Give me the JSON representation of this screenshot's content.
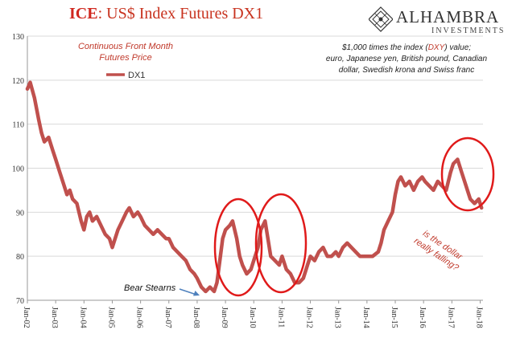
{
  "header": {
    "title_prefix": "ICE",
    "title_rest": ": US$ Index Futures DX1",
    "logo_name": "ALHAMBRA",
    "logo_sub": "INVESTMENTS"
  },
  "annotations": {
    "series_desc_line1": "Continuous  Front Month",
    "series_desc_line2": "Futures Price",
    "note_line1_a": "$1,000 times the index (",
    "note_line1_b": "DXY",
    "note_line1_c": ") value;",
    "note_line2": "euro, Japanese yen, British pound, Canadian",
    "note_line3": "dollar, Swedish krona and Swiss franc",
    "bear_stearns": "Bear Stearns",
    "question_line1": "is the dollar",
    "question_line2": "really falling?"
  },
  "colors": {
    "series": "#c0504d",
    "title_red": "#d0281f",
    "circle": "#e01a1a",
    "arrow": "#4f81bd",
    "annotation_red": "#c0392b"
  },
  "chart_data": {
    "type": "line",
    "title": "ICE: US$ Index Futures DX1",
    "ylim": [
      70,
      130
    ],
    "yticks": [
      70,
      80,
      90,
      100,
      110,
      120,
      130
    ],
    "xlim": [
      2002.0,
      2018.1
    ],
    "xtick_labels": [
      "Jan-02",
      "Jan-03",
      "Jan-04",
      "Jan-05",
      "Jan-06",
      "Jan-07",
      "Jan-08",
      "Jan-09",
      "Jan-10",
      "Jan-11",
      "Jan-12",
      "Jan-13",
      "Jan-14",
      "Jan-15",
      "Jan-16",
      "Jan-17",
      "Jan-18"
    ],
    "grid": "horizontal",
    "legend_position": "top-left",
    "series": [
      {
        "name": "DX1",
        "x": [
          2002.0,
          2002.1,
          2002.25,
          2002.4,
          2002.5,
          2002.6,
          2002.75,
          2002.9,
          2003.0,
          2003.15,
          2003.3,
          2003.4,
          2003.5,
          2003.6,
          2003.75,
          2003.9,
          2004.0,
          2004.1,
          2004.2,
          2004.3,
          2004.45,
          2004.6,
          2004.75,
          2004.9,
          2005.0,
          2005.1,
          2005.2,
          2005.35,
          2005.5,
          2005.6,
          2005.75,
          2005.9,
          2006.0,
          2006.15,
          2006.3,
          2006.45,
          2006.6,
          2006.75,
          2006.9,
          2007.0,
          2007.15,
          2007.3,
          2007.45,
          2007.6,
          2007.75,
          2007.9,
          2008.0,
          2008.15,
          2008.3,
          2008.45,
          2008.6,
          2008.7,
          2008.8,
          2008.9,
          2009.0,
          2009.15,
          2009.25,
          2009.4,
          2009.5,
          2009.6,
          2009.75,
          2009.9,
          2010.0,
          2010.15,
          2010.25,
          2010.4,
          2010.5,
          2010.6,
          2010.75,
          2010.9,
          2011.0,
          2011.15,
          2011.3,
          2011.45,
          2011.6,
          2011.75,
          2011.9,
          2012.0,
          2012.15,
          2012.3,
          2012.45,
          2012.6,
          2012.75,
          2012.9,
          2013.0,
          2013.15,
          2013.3,
          2013.45,
          2013.6,
          2013.75,
          2013.9,
          2014.0,
          2014.2,
          2014.4,
          2014.5,
          2014.6,
          2014.75,
          2014.9,
          2015.0,
          2015.1,
          2015.2,
          2015.35,
          2015.5,
          2015.65,
          2015.8,
          2015.95,
          2016.05,
          2016.2,
          2016.35,
          2016.5,
          2016.65,
          2016.8,
          2016.95,
          2017.05,
          2017.2,
          2017.35,
          2017.5,
          2017.65,
          2017.8,
          2017.95,
          2018.05
        ],
        "values": [
          118,
          119.5,
          116,
          111,
          108,
          106,
          107,
          104,
          102,
          99,
          96,
          94,
          95,
          93,
          92,
          88,
          86,
          89,
          90,
          88,
          89,
          87,
          85,
          84,
          82,
          84,
          86,
          88,
          90,
          91,
          89,
          90,
          89,
          87,
          86,
          85,
          86,
          85,
          84,
          84,
          82,
          81,
          80,
          79,
          77,
          76,
          75,
          73,
          72,
          73,
          72,
          74,
          79,
          84,
          86,
          87,
          88,
          84,
          80,
          78,
          76,
          77,
          79,
          82,
          86,
          88,
          84,
          80,
          79,
          78,
          80,
          77,
          76,
          74,
          74,
          75,
          78,
          80,
          79,
          81,
          82,
          80,
          80,
          81,
          80,
          82,
          83,
          82,
          81,
          80,
          80,
          80,
          80,
          81,
          83,
          86,
          88,
          90,
          94,
          97,
          98,
          96,
          97,
          95,
          97,
          98,
          97,
          96,
          95,
          97,
          96,
          95,
          99,
          101,
          102,
          99,
          96,
          93,
          92,
          93,
          91
        ]
      }
    ]
  }
}
